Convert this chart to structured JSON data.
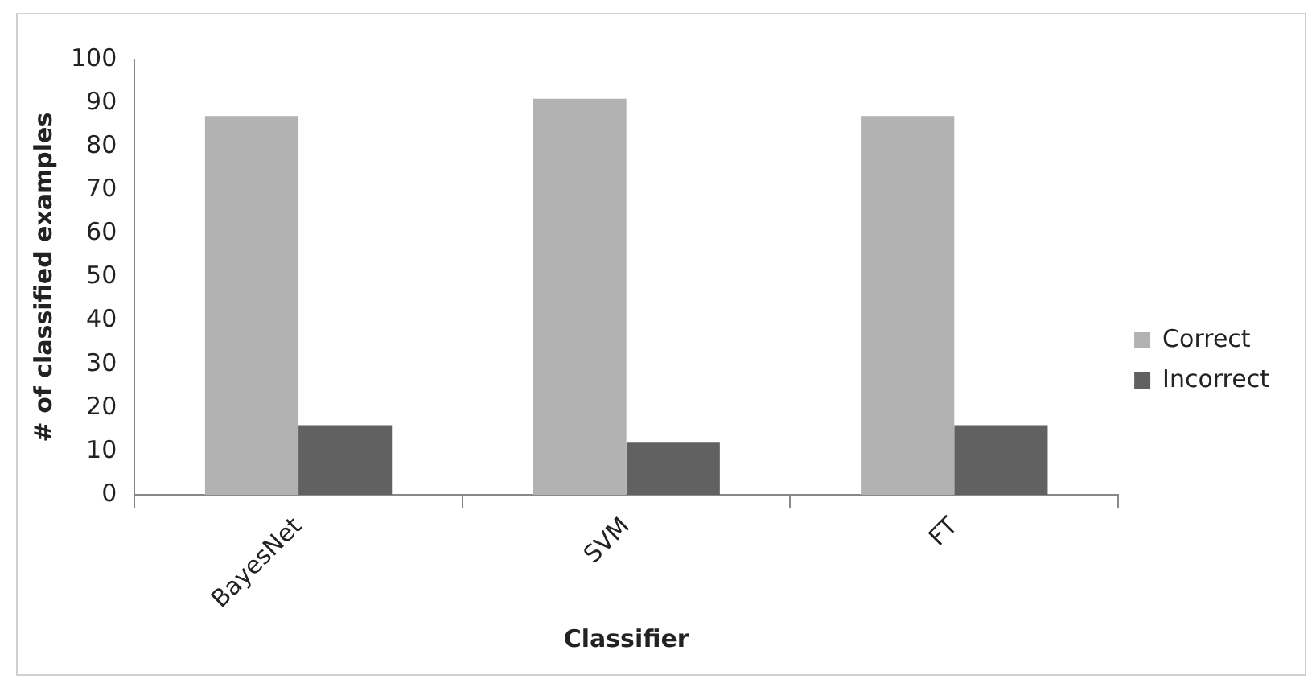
{
  "chart_data": {
    "type": "bar",
    "xlabel": "Classifier",
    "ylabel": "# of classified examples",
    "categories": [
      "BayesNet",
      "SVM",
      "FT"
    ],
    "series": [
      {
        "name": "Correct",
        "color": "#b2b2b2",
        "values": [
          87,
          91,
          87
        ]
      },
      {
        "name": "Incorrect",
        "color": "#616161",
        "values": [
          16,
          12,
          16
        ]
      }
    ],
    "ylim": [
      0,
      100
    ],
    "yticks": [
      0,
      10,
      20,
      30,
      40,
      50,
      60,
      70,
      80,
      90,
      100
    ],
    "grid": false,
    "legend": "right"
  }
}
